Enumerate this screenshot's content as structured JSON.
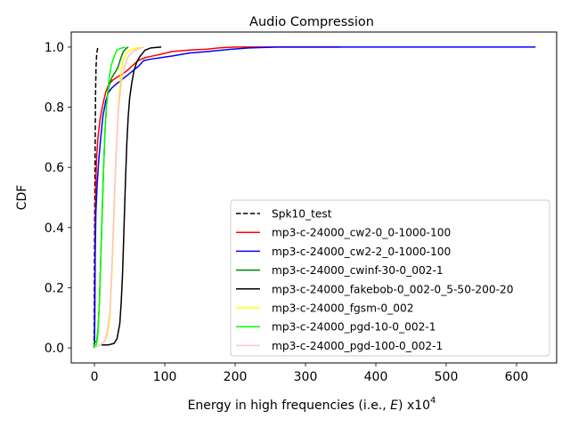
{
  "chart_data": {
    "type": "line",
    "title": "Audio Compression",
    "xlabel": "Energy in high frequencies (i.e., E) x10^4",
    "xlabel_parts": {
      "main": "Energy in high frequencies (i.e., ",
      "var": "E",
      "mid": ") x10",
      "sup": "4"
    },
    "ylabel": "CDF",
    "xlim": [
      -33,
      657
    ],
    "ylim": [
      -0.05,
      1.05
    ],
    "xticks": [
      0,
      100,
      200,
      300,
      400,
      500,
      600
    ],
    "yticks": [
      0.0,
      0.2,
      0.4,
      0.6,
      0.8,
      1.0
    ],
    "xtick_labels": [
      "0",
      "100",
      "200",
      "300",
      "400",
      "500",
      "600"
    ],
    "ytick_labels": [
      "0.0",
      "0.2",
      "0.4",
      "0.6",
      "0.8",
      "1.0"
    ],
    "grid": false,
    "legend_position": "lower-right",
    "series": [
      {
        "name": "Spk10_test",
        "color": "#000000",
        "dash": "dashed",
        "points": [
          [
            -0.5,
            0
          ],
          [
            0,
            0.3
          ],
          [
            0.4,
            0.45
          ],
          [
            0.8,
            0.6
          ],
          [
            1.2,
            0.75
          ],
          [
            1.6,
            0.85
          ],
          [
            2.2,
            0.93
          ],
          [
            3,
            0.97
          ],
          [
            4,
            0.99
          ],
          [
            5,
            1.0
          ]
        ]
      },
      {
        "name": "mp3-c-24000_cw2-0_0-1000-100",
        "color": "#ff0000",
        "dash": "solid",
        "points": [
          [
            0,
            0
          ],
          [
            0.5,
            0.2
          ],
          [
            1,
            0.4
          ],
          [
            2,
            0.55
          ],
          [
            3,
            0.63
          ],
          [
            5,
            0.7
          ],
          [
            8,
            0.76
          ],
          [
            12,
            0.81
          ],
          [
            16,
            0.85
          ],
          [
            20,
            0.875
          ],
          [
            26,
            0.89
          ],
          [
            32,
            0.9
          ],
          [
            40,
            0.91
          ],
          [
            48,
            0.925
          ],
          [
            55,
            0.94
          ],
          [
            62,
            0.955
          ],
          [
            72,
            0.965
          ],
          [
            82,
            0.97
          ],
          [
            92,
            0.975
          ],
          [
            110,
            0.985
          ],
          [
            135,
            0.99
          ],
          [
            160,
            0.993
          ],
          [
            180,
            0.998
          ],
          [
            200,
            1.0
          ],
          [
            350,
            1.0
          ]
        ]
      },
      {
        "name": "mp3-c-24000_cw2-2_0-1000-100",
        "color": "#0000ff",
        "dash": "solid",
        "points": [
          [
            0,
            0
          ],
          [
            0.5,
            0.1
          ],
          [
            1,
            0.3
          ],
          [
            2,
            0.45
          ],
          [
            4,
            0.55
          ],
          [
            6,
            0.62
          ],
          [
            9,
            0.7
          ],
          [
            12,
            0.77
          ],
          [
            16,
            0.82
          ],
          [
            20,
            0.85
          ],
          [
            25,
            0.865
          ],
          [
            30,
            0.875
          ],
          [
            38,
            0.89
          ],
          [
            46,
            0.905
          ],
          [
            54,
            0.92
          ],
          [
            62,
            0.935
          ],
          [
            70,
            0.955
          ],
          [
            80,
            0.96
          ],
          [
            95,
            0.965
          ],
          [
            110,
            0.97
          ],
          [
            135,
            0.98
          ],
          [
            160,
            0.985
          ],
          [
            190,
            0.992
          ],
          [
            220,
            0.997
          ],
          [
            260,
            1.0
          ],
          [
            627,
            1.0
          ]
        ]
      },
      {
        "name": "mp3-c-24000_cwinf-30-0_002-1",
        "color": "#008000",
        "dash": "solid",
        "points": [
          [
            -1,
            0.0
          ],
          [
            0,
            0.02
          ],
          [
            3,
            0.02
          ],
          [
            5,
            0.06
          ],
          [
            7,
            0.15
          ],
          [
            9,
            0.3
          ],
          [
            11,
            0.45
          ],
          [
            13,
            0.6
          ],
          [
            15,
            0.72
          ],
          [
            17,
            0.8
          ],
          [
            19,
            0.85
          ],
          [
            21,
            0.875
          ],
          [
            25,
            0.9
          ],
          [
            29,
            0.915
          ],
          [
            33,
            0.93
          ],
          [
            37,
            0.96
          ],
          [
            41,
            0.985
          ],
          [
            45,
            0.995
          ],
          [
            48,
            1.0
          ]
        ]
      },
      {
        "name": "mp3-c-24000_fakebob-0_002-0_5-50-200-20",
        "color": "#000000",
        "dash": "solid",
        "points": [
          [
            10,
            0.01
          ],
          [
            20,
            0.01
          ],
          [
            28,
            0.015
          ],
          [
            32,
            0.03
          ],
          [
            36,
            0.08
          ],
          [
            38,
            0.15
          ],
          [
            40,
            0.25
          ],
          [
            42,
            0.4
          ],
          [
            44,
            0.55
          ],
          [
            46,
            0.68
          ],
          [
            48,
            0.77
          ],
          [
            50,
            0.83
          ],
          [
            53,
            0.88
          ],
          [
            56,
            0.92
          ],
          [
            60,
            0.95
          ],
          [
            65,
            0.97
          ],
          [
            72,
            0.99
          ],
          [
            80,
            0.997
          ],
          [
            95,
            1.0
          ]
        ]
      },
      {
        "name": "mp3-c-24000_fgsm-0_002",
        "color": "#ffff00",
        "dash": "solid",
        "points": [
          [
            0,
            0
          ],
          [
            8,
            0.01
          ],
          [
            14,
            0.02
          ],
          [
            18,
            0.04
          ],
          [
            22,
            0.1
          ],
          [
            25,
            0.25
          ],
          [
            28,
            0.45
          ],
          [
            31,
            0.65
          ],
          [
            34,
            0.8
          ],
          [
            37,
            0.9
          ],
          [
            40,
            0.95
          ],
          [
            44,
            0.975
          ],
          [
            50,
            0.99
          ],
          [
            58,
            0.995
          ],
          [
            65,
            1.0
          ]
        ]
      },
      {
        "name": "mp3-c-24000_pgd-10-0_002-1",
        "color": "#00ff00",
        "dash": "solid",
        "points": [
          [
            -1,
            0
          ],
          [
            0,
            0.01
          ],
          [
            3,
            0.01
          ],
          [
            5,
            0.05
          ],
          [
            7,
            0.15
          ],
          [
            9,
            0.3
          ],
          [
            11,
            0.45
          ],
          [
            13,
            0.6
          ],
          [
            15,
            0.72
          ],
          [
            17,
            0.8
          ],
          [
            19,
            0.85
          ],
          [
            21,
            0.9
          ],
          [
            24,
            0.94
          ],
          [
            28,
            0.97
          ],
          [
            32,
            0.99
          ],
          [
            36,
            0.995
          ],
          [
            44,
            1.0
          ]
        ]
      },
      {
        "name": "mp3-c-24000_pgd-100-0_002-1",
        "color": "#ffc0cb",
        "dash": "solid",
        "points": [
          [
            0,
            0
          ],
          [
            8,
            0.01
          ],
          [
            14,
            0.02
          ],
          [
            18,
            0.05
          ],
          [
            22,
            0.12
          ],
          [
            25,
            0.28
          ],
          [
            28,
            0.48
          ],
          [
            31,
            0.66
          ],
          [
            34,
            0.79
          ],
          [
            38,
            0.88
          ],
          [
            42,
            0.93
          ],
          [
            46,
            0.96
          ],
          [
            52,
            0.98
          ],
          [
            58,
            0.99
          ],
          [
            64,
            0.995
          ],
          [
            70,
            1.0
          ]
        ]
      }
    ]
  }
}
